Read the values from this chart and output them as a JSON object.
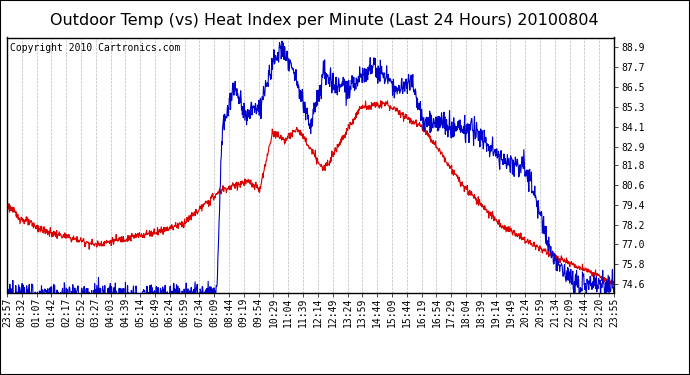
{
  "title": "Outdoor Temp (vs) Heat Index per Minute (Last 24 Hours) 20100804",
  "copyright": "Copyright 2010 Cartronics.com",
  "yticks": [
    74.6,
    75.8,
    77.0,
    78.2,
    79.4,
    80.6,
    81.8,
    82.9,
    84.1,
    85.3,
    86.5,
    87.7,
    88.9
  ],
  "ylim": [
    74.1,
    89.5
  ],
  "background_color": "#ffffff",
  "grid_color": "#bbbbbb",
  "line_color_red": "#dd0000",
  "line_color_blue": "#0000cc",
  "title_fontsize": 11.5,
  "copyright_fontsize": 7,
  "tick_fontsize": 7,
  "num_points": 1440,
  "xtick_labels": [
    "23:57",
    "00:32",
    "01:07",
    "01:42",
    "02:17",
    "02:52",
    "03:27",
    "04:03",
    "04:39",
    "05:14",
    "05:49",
    "06:24",
    "06:59",
    "07:34",
    "08:09",
    "08:44",
    "09:19",
    "09:54",
    "10:29",
    "11:04",
    "11:39",
    "12:14",
    "12:49",
    "13:24",
    "13:59",
    "14:44",
    "15:09",
    "15:44",
    "16:19",
    "16:54",
    "17:29",
    "18:04",
    "18:39",
    "19:14",
    "19:49",
    "20:24",
    "20:59",
    "21:34",
    "22:09",
    "22:44",
    "23:20",
    "23:55"
  ]
}
